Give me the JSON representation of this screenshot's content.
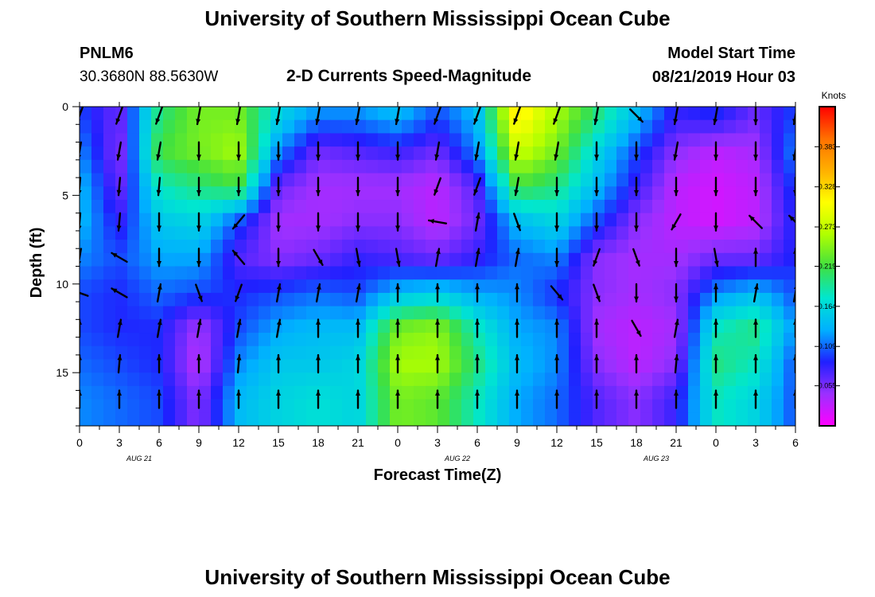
{
  "header": {
    "title_top": "University of Southern Mississippi Ocean Cube",
    "title_bottom": "University of Southern Mississippi Ocean Cube",
    "station_id": "PNLM6",
    "station_coords": "30.3680N 88.5630W",
    "chart_title": "2-D Currents Speed-Magnitude",
    "model_start_label": "Model Start Time",
    "model_start_value": "08/21/2019 Hour 03"
  },
  "colors": {
    "scale": [
      "#ff00ff",
      "#9b30ff",
      "#2020ff",
      "#00b0ff",
      "#00e6d0",
      "#40e040",
      "#b0ff00",
      "#ffff00",
      "#ffb000",
      "#ff7000",
      "#ff0000"
    ],
    "arrow": "#000000"
  },
  "chart_data": {
    "type": "heatmap",
    "xlabel": "Forecast Time(Z)",
    "ylabel": "Depth (ft)",
    "x_ticks": [
      "0",
      "3",
      "6",
      "9",
      "12",
      "15",
      "18",
      "21",
      "0",
      "3",
      "6",
      "9",
      "12",
      "15",
      "18",
      "21",
      "0",
      "3",
      "6"
    ],
    "date_labels": [
      {
        "label": "AUG 21",
        "tick_index": 1.5
      },
      {
        "label": "AUG 22",
        "tick_index": 9.5
      },
      {
        "label": "AUG 23",
        "tick_index": 14.5
      }
    ],
    "y_ticks": [
      0,
      5,
      10,
      15
    ],
    "ylim": [
      0,
      18
    ],
    "y_inverted": true,
    "colorbar": {
      "units": "Knots",
      "ticks": [
        0.383,
        0.328,
        0.273,
        0.219,
        0.164,
        0.109,
        0.055
      ],
      "range": [
        0.0,
        0.438
      ]
    },
    "time_hours": [
      0,
      3,
      6,
      9,
      12,
      15,
      18,
      21,
      24,
      27,
      30,
      33,
      36,
      39,
      42,
      45,
      48,
      51,
      54
    ],
    "depth_ft": [
      0.5,
      2.5,
      4.5,
      6.5,
      8.5,
      10.5,
      12.5,
      14.5,
      16.5
    ],
    "speed_knots": [
      [
        0.1,
        0.06,
        0.2,
        0.24,
        0.24,
        0.16,
        0.12,
        0.12,
        0.14,
        0.1,
        0.14,
        0.32,
        0.26,
        0.2,
        0.14,
        0.08,
        0.09,
        0.06,
        0.1
      ],
      [
        0.12,
        0.05,
        0.22,
        0.24,
        0.26,
        0.12,
        0.06,
        0.07,
        0.08,
        0.06,
        0.12,
        0.28,
        0.24,
        0.16,
        0.1,
        0.05,
        0.03,
        0.04,
        0.12
      ],
      [
        0.14,
        0.06,
        0.18,
        0.2,
        0.22,
        0.06,
        0.04,
        0.04,
        0.04,
        0.03,
        0.07,
        0.22,
        0.2,
        0.14,
        0.08,
        0.03,
        0.02,
        0.03,
        0.1
      ],
      [
        0.14,
        0.08,
        0.15,
        0.16,
        0.1,
        0.04,
        0.04,
        0.05,
        0.05,
        0.03,
        0.06,
        0.14,
        0.16,
        0.1,
        0.05,
        0.03,
        0.02,
        0.03,
        0.09
      ],
      [
        0.12,
        0.1,
        0.13,
        0.13,
        0.07,
        0.05,
        0.06,
        0.08,
        0.07,
        0.06,
        0.08,
        0.11,
        0.12,
        0.05,
        0.04,
        0.04,
        0.06,
        0.06,
        0.09
      ],
      [
        0.1,
        0.09,
        0.11,
        0.1,
        0.09,
        0.1,
        0.11,
        0.1,
        0.14,
        0.15,
        0.13,
        0.12,
        0.09,
        0.05,
        0.04,
        0.05,
        0.12,
        0.14,
        0.1
      ],
      [
        0.1,
        0.09,
        0.09,
        0.04,
        0.1,
        0.13,
        0.14,
        0.14,
        0.24,
        0.25,
        0.18,
        0.13,
        0.12,
        0.04,
        0.03,
        0.04,
        0.18,
        0.2,
        0.12
      ],
      [
        0.11,
        0.1,
        0.09,
        0.03,
        0.12,
        0.15,
        0.15,
        0.16,
        0.26,
        0.26,
        0.2,
        0.14,
        0.12,
        0.05,
        0.03,
        0.05,
        0.2,
        0.18,
        0.1
      ],
      [
        0.12,
        0.11,
        0.1,
        0.05,
        0.14,
        0.16,
        0.17,
        0.16,
        0.24,
        0.23,
        0.18,
        0.13,
        0.11,
        0.07,
        0.05,
        0.08,
        0.18,
        0.16,
        0.1
      ]
    ],
    "direction_deg": [
      [
        200,
        200,
        200,
        190,
        190,
        190,
        190,
        190,
        190,
        200,
        200,
        200,
        200,
        190,
        135,
        190,
        190,
        180,
        190
      ],
      [
        190,
        190,
        190,
        180,
        180,
        180,
        180,
        180,
        180,
        190,
        190,
        190,
        190,
        180,
        180,
        190,
        180,
        180,
        190
      ],
      [
        185,
        185,
        185,
        180,
        180,
        180,
        180,
        180,
        180,
        200,
        200,
        190,
        180,
        180,
        180,
        180,
        180,
        180,
        180
      ],
      [
        185,
        185,
        180,
        180,
        220,
        180,
        180,
        180,
        180,
        280,
        10,
        160,
        180,
        180,
        180,
        210,
        180,
        315,
        315
      ],
      [
        190,
        300,
        180,
        180,
        320,
        180,
        150,
        170,
        170,
        10,
        10,
        10,
        180,
        200,
        160,
        180,
        170,
        0,
        0
      ],
      [
        290,
        300,
        10,
        160,
        200,
        10,
        10,
        10,
        0,
        0,
        0,
        0,
        140,
        160,
        180,
        180,
        0,
        10,
        10
      ],
      [
        0,
        10,
        10,
        10,
        10,
        10,
        0,
        0,
        0,
        0,
        0,
        0,
        0,
        0,
        150,
        10,
        0,
        0,
        0
      ],
      [
        0,
        5,
        0,
        0,
        5,
        0,
        0,
        0,
        0,
        0,
        0,
        0,
        0,
        0,
        0,
        5,
        0,
        0,
        0
      ],
      [
        0,
        0,
        0,
        0,
        0,
        0,
        0,
        0,
        0,
        0,
        0,
        0,
        0,
        0,
        0,
        0,
        0,
        0,
        0
      ]
    ]
  }
}
